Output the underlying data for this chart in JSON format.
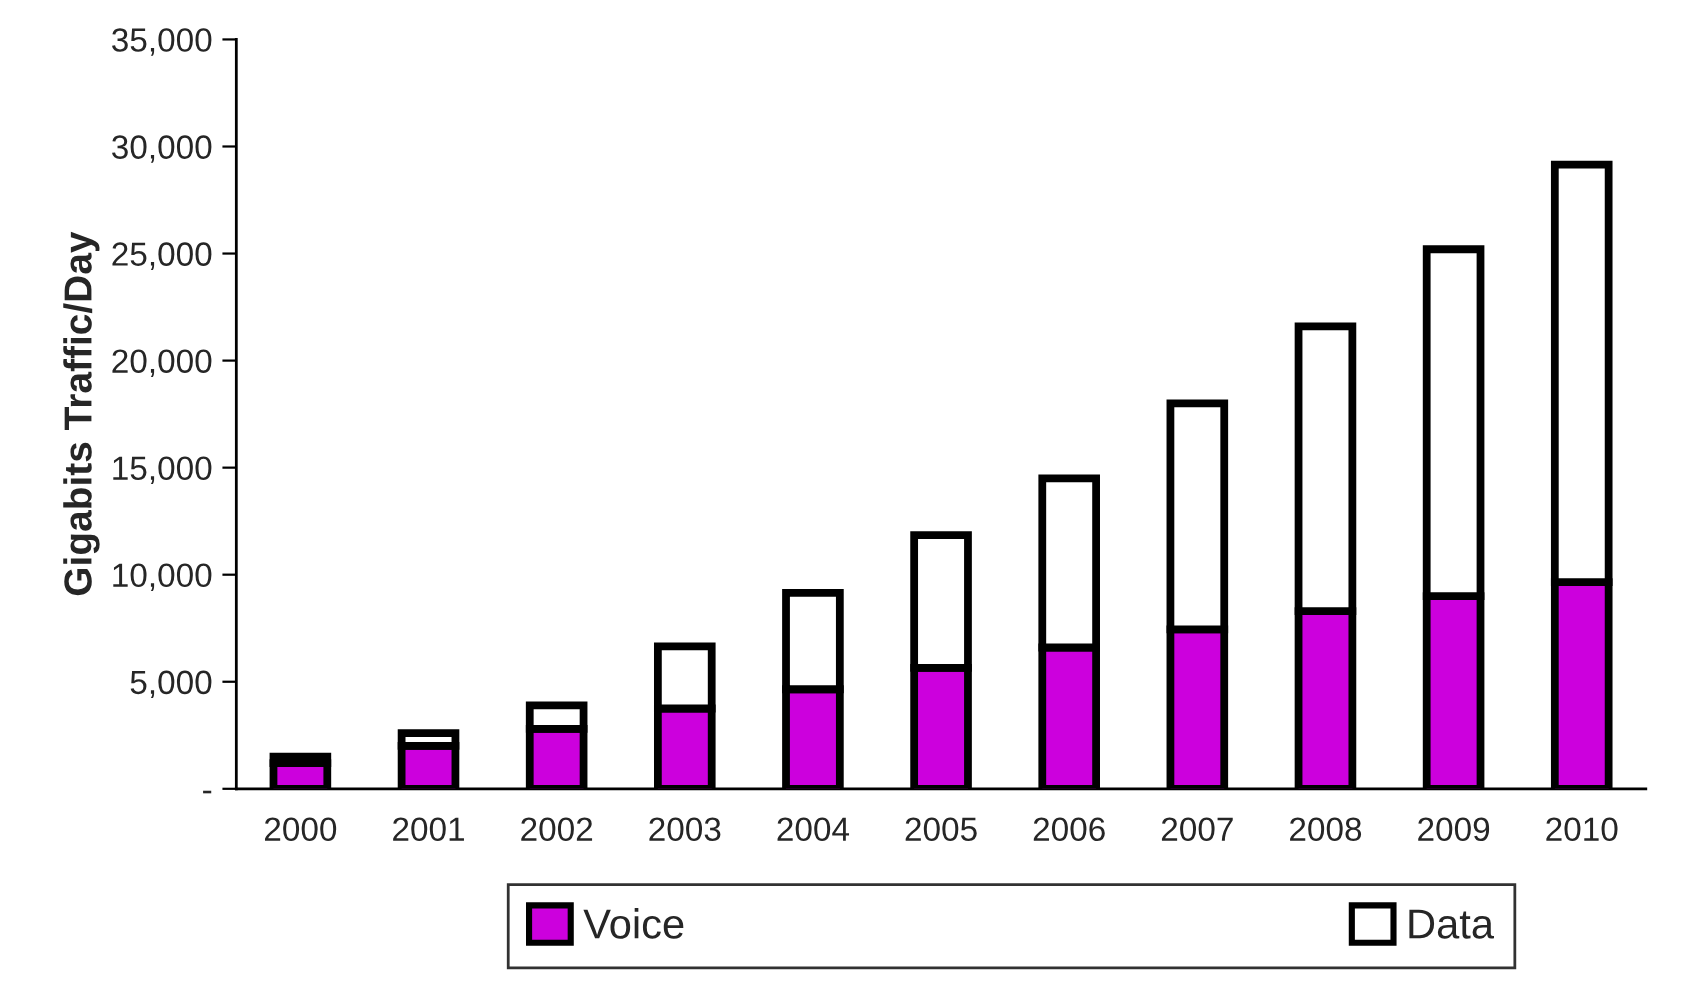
{
  "chart_data": {
    "type": "bar",
    "stacked": true,
    "ylabel": "Gigabits Traffic/Day",
    "categories": [
      "2000",
      "2001",
      "2002",
      "2003",
      "2004",
      "2005",
      "2006",
      "2007",
      "2008",
      "2009",
      "2010"
    ],
    "series": [
      {
        "name": "Voice",
        "color": "#cc00dd",
        "values": [
          1200,
          2000,
          2800,
          3750,
          4650,
          5650,
          6600,
          7450,
          8300,
          9000,
          9650
        ]
      },
      {
        "name": "Data",
        "color": "#ffffff",
        "values": [
          300,
          600,
          1100,
          2900,
          4500,
          6200,
          7900,
          10550,
          13300,
          16200,
          19500
        ]
      }
    ],
    "ylim": [
      0,
      35000
    ],
    "yticks": [
      {
        "value": 0,
        "label": "-"
      },
      {
        "value": 5000,
        "label": "5,000"
      },
      {
        "value": 10000,
        "label": "10,000"
      },
      {
        "value": 15000,
        "label": "15,000"
      },
      {
        "value": 20000,
        "label": "20,000"
      },
      {
        "value": 25000,
        "label": "25,000"
      },
      {
        "value": 30000,
        "label": "30,000"
      },
      {
        "value": 35000,
        "label": "35,000"
      }
    ],
    "grid": false,
    "legend": "bottom"
  }
}
